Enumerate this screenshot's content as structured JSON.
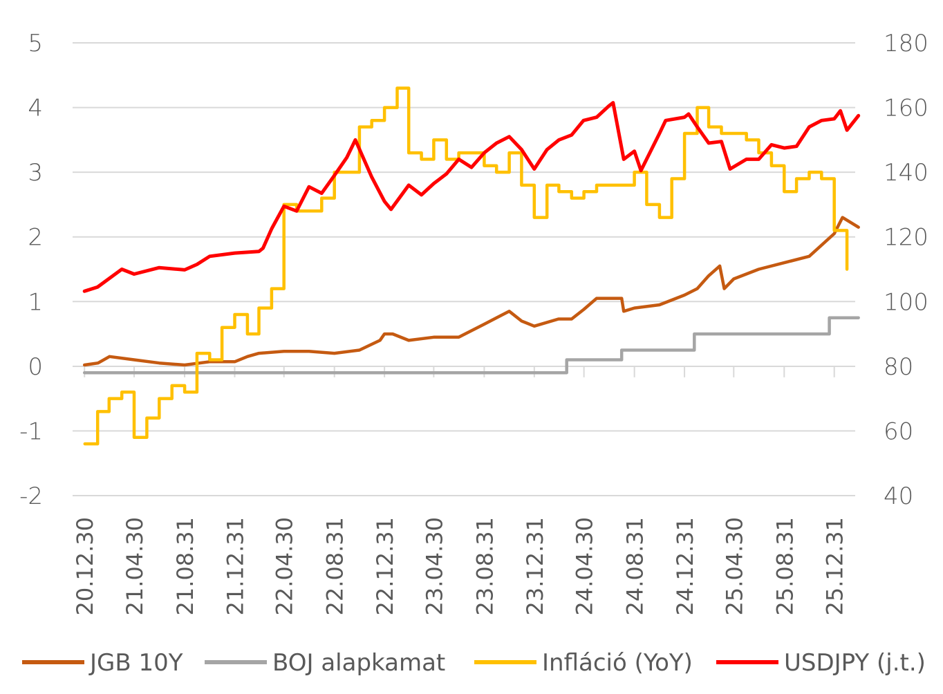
{
  "chart_data": {
    "type": "line",
    "title": "",
    "x_labels": [
      "20.12.30",
      "21.04.30",
      "21.08.31",
      "21.12.31",
      "22.04.30",
      "22.08.31",
      "22.12.31",
      "23.04.30",
      "23.08.31",
      "23.12.31",
      "24.04.30",
      "24.08.31",
      "24.12.31",
      "25.04.30",
      "25.08.31",
      "25.12.31"
    ],
    "y_left": {
      "min": -2,
      "max": 5,
      "ticks": [
        "-2",
        "-1",
        "0",
        "1",
        "2",
        "3",
        "4",
        "5"
      ]
    },
    "y_right": {
      "min": 40,
      "max": 180,
      "ticks": [
        "40",
        "60",
        "80",
        "100",
        "120",
        "140",
        "160",
        "180"
      ]
    },
    "grid": "horizontal",
    "legend_position": "bottom",
    "series": [
      {
        "name": "JGB 10Y",
        "axis": "left",
        "color": "#C55A11",
        "x": [
          "2020-12-30",
          "2021-02-01",
          "2021-03-01",
          "2021-04-30",
          "2021-06-30",
          "2021-08-31",
          "2021-10-31",
          "2021-12-31",
          "2022-01-31",
          "2022-02-28",
          "2022-04-30",
          "2022-06-30",
          "2022-08-31",
          "2022-10-31",
          "2022-12-20",
          "2022-12-31",
          "2023-01-20",
          "2023-02-28",
          "2023-04-30",
          "2023-06-30",
          "2023-08-31",
          "2023-09-30",
          "2023-10-31",
          "2023-11-30",
          "2023-12-31",
          "2024-02-28",
          "2024-03-31",
          "2024-04-30",
          "2024-05-31",
          "2024-06-30",
          "2024-07-31",
          "2024-08-05",
          "2024-08-31",
          "2024-10-31",
          "2024-12-31",
          "2025-01-31",
          "2025-02-28",
          "2025-03-27",
          "2025-04-07",
          "2025-04-30",
          "2025-06-30",
          "2025-08-31",
          "2025-10-31",
          "2025-12-31",
          "2026-01-20",
          "2026-02-28"
        ],
        "values": [
          0.02,
          0.05,
          0.15,
          0.1,
          0.05,
          0.02,
          0.07,
          0.07,
          0.15,
          0.2,
          0.23,
          0.23,
          0.2,
          0.25,
          0.4,
          0.5,
          0.5,
          0.4,
          0.45,
          0.45,
          0.65,
          0.75,
          0.85,
          0.7,
          0.62,
          0.73,
          0.73,
          0.88,
          1.05,
          1.05,
          1.05,
          0.85,
          0.9,
          0.95,
          1.1,
          1.2,
          1.4,
          1.55,
          1.2,
          1.35,
          1.5,
          1.6,
          1.7,
          2.05,
          2.3,
          2.15
        ]
      },
      {
        "name": "BOJ alapkamat",
        "axis": "left",
        "color": "#A5A5A5",
        "x": [
          "2020-12-30",
          "2024-03-19",
          "2024-07-31",
          "2025-01-24",
          "2025-12-19",
          "2026-02-28"
        ],
        "values": [
          -0.1,
          0.1,
          0.25,
          0.5,
          0.75,
          0.75
        ],
        "step": true
      },
      {
        "name": "Infláció (YoY)",
        "axis": "left",
        "color": "#FFC000",
        "x": [
          "2020-12-31",
          "2021-01-31",
          "2021-02-28",
          "2021-03-31",
          "2021-04-30",
          "2021-05-31",
          "2021-06-30",
          "2021-07-31",
          "2021-08-31",
          "2021-09-30",
          "2021-10-31",
          "2021-11-30",
          "2021-12-31",
          "2022-01-31",
          "2022-02-28",
          "2022-03-31",
          "2022-04-30",
          "2022-05-31",
          "2022-06-30",
          "2022-07-31",
          "2022-08-31",
          "2022-09-30",
          "2022-10-31",
          "2022-11-30",
          "2022-12-31",
          "2023-01-31",
          "2023-02-28",
          "2023-03-31",
          "2023-04-30",
          "2023-05-31",
          "2023-06-30",
          "2023-07-31",
          "2023-08-31",
          "2023-09-30",
          "2023-10-31",
          "2023-11-30",
          "2023-12-31",
          "2024-01-31",
          "2024-02-29",
          "2024-03-31",
          "2024-04-30",
          "2024-05-31",
          "2024-06-30",
          "2024-07-31",
          "2024-08-31",
          "2024-09-30",
          "2024-10-31",
          "2024-11-30",
          "2024-12-31",
          "2025-01-31",
          "2025-02-28",
          "2025-03-31",
          "2025-04-30",
          "2025-05-31",
          "2025-06-30",
          "2025-07-31",
          "2025-08-31",
          "2025-09-30",
          "2025-10-31",
          "2025-11-30",
          "2025-12-31",
          "2026-01-31"
        ],
        "values": [
          -1.2,
          -0.7,
          -0.5,
          -0.4,
          -1.1,
          -0.8,
          -0.5,
          -0.3,
          -0.4,
          0.2,
          0.1,
          0.6,
          0.8,
          0.5,
          0.9,
          1.2,
          2.5,
          2.4,
          2.4,
          2.6,
          3.0,
          3.0,
          3.7,
          3.8,
          4.0,
          4.3,
          3.3,
          3.2,
          3.5,
          3.2,
          3.3,
          3.3,
          3.1,
          3.0,
          3.3,
          2.8,
          2.3,
          2.8,
          2.7,
          2.6,
          2.7,
          2.8,
          2.8,
          2.8,
          3.0,
          2.5,
          2.3,
          2.9,
          3.6,
          4.0,
          3.7,
          3.6,
          3.6,
          3.5,
          3.3,
          3.1,
          2.7,
          2.9,
          3.0,
          2.9,
          2.1,
          1.5
        ]
      },
      {
        "name": "USDJPY (j.t.)",
        "axis": "right",
        "color": "#FF0000",
        "x": [
          "2020-12-30",
          "2021-01-31",
          "2021-03-31",
          "2021-04-30",
          "2021-06-30",
          "2021-08-31",
          "2021-09-30",
          "2021-10-31",
          "2021-12-31",
          "2022-02-28",
          "2022-03-10",
          "2022-03-31",
          "2022-04-30",
          "2022-05-31",
          "2022-06-30",
          "2022-07-31",
          "2022-08-31",
          "2022-09-30",
          "2022-10-21",
          "2022-11-30",
          "2022-12-31",
          "2023-01-16",
          "2023-02-28",
          "2023-03-31",
          "2023-04-30",
          "2023-05-31",
          "2023-06-30",
          "2023-07-31",
          "2023-08-31",
          "2023-09-30",
          "2023-10-31",
          "2023-11-30",
          "2023-12-31",
          "2024-01-31",
          "2024-02-29",
          "2024-03-31",
          "2024-04-29",
          "2024-05-31",
          "2024-06-30",
          "2024-07-10",
          "2024-08-05",
          "2024-08-31",
          "2024-09-16",
          "2024-10-31",
          "2024-11-15",
          "2024-12-31",
          "2025-01-10",
          "2025-01-31",
          "2025-02-28",
          "2025-03-31",
          "2025-04-21",
          "2025-05-31",
          "2025-06-30",
          "2025-07-31",
          "2025-08-31",
          "2025-09-30",
          "2025-10-31",
          "2025-11-30",
          "2025-12-31",
          "2026-01-15",
          "2026-01-31",
          "2026-02-28"
        ],
        "values": [
          103.2,
          104.5,
          110.0,
          108.5,
          110.5,
          109.8,
          111.5,
          114.0,
          115.0,
          115.5,
          116.5,
          122.5,
          129.5,
          128.0,
          135.5,
          133.5,
          139.0,
          144.5,
          150.0,
          138.5,
          131.0,
          128.5,
          136.0,
          133.0,
          136.5,
          139.5,
          144.0,
          141.5,
          146.0,
          149.0,
          151.0,
          147.0,
          141.0,
          147.0,
          150.0,
          151.5,
          156.0,
          157.0,
          160.5,
          161.5,
          144.0,
          146.5,
          140.5,
          152.0,
          156.0,
          157.0,
          158.0,
          154.0,
          149.0,
          149.5,
          141.0,
          144.0,
          144.0,
          148.5,
          147.5,
          148.0,
          154.0,
          156.0,
          156.5,
          159.0,
          153.0,
          157.5
        ]
      }
    ]
  }
}
